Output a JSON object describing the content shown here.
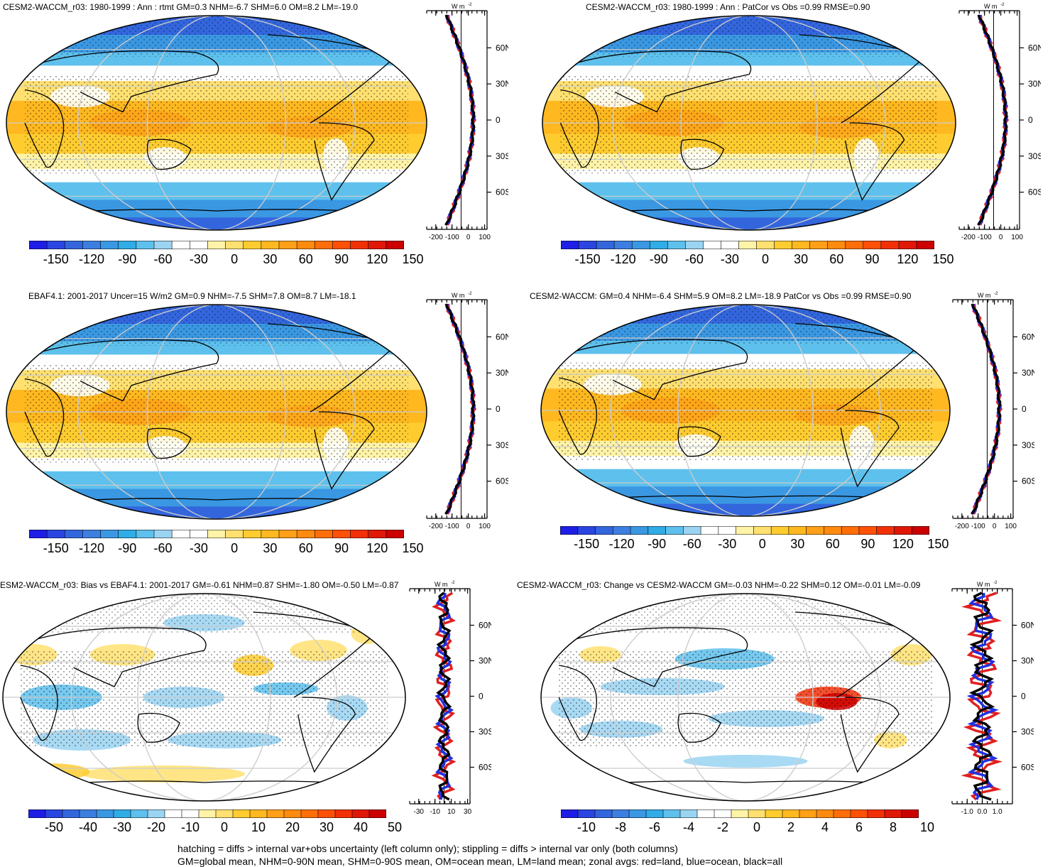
{
  "panels": [
    {
      "id": "p1",
      "title": "CESM2-WACCM_r03: 1980-1999 : Ann : rtmt GM=0.3 NHM=-6.7 SHM=6.0 OM=8.2 LM=-19.0",
      "type": "mean",
      "zonal_ticks_x": [
        "-200",
        "-100",
        "0",
        "100"
      ],
      "unit_label": "W m",
      "unit_sup": "-2",
      "cbar_ticks": [
        "-150",
        "-120",
        "-90",
        "-60",
        "-30",
        "0",
        "30",
        "60",
        "90",
        "120",
        "150"
      ]
    },
    {
      "id": "p2",
      "title": "CESM2-WACCM_r03: 1980-1999 : Ann : PatCor vs Obs =0.99 RMSE=0.90",
      "type": "mean",
      "zonal_ticks_x": [
        "-200",
        "-100",
        "0",
        "100"
      ],
      "unit_label": "W m",
      "unit_sup": "-2",
      "cbar_ticks": [
        "-150",
        "-120",
        "-90",
        "-60",
        "-30",
        "0",
        "30",
        "60",
        "90",
        "120",
        "150"
      ]
    },
    {
      "id": "p3",
      "title": "EBAF4.1: 2001-2017 Uncer=15 W/m2 GM=0.9 NHM=-7.5 SHM=7.8 OM=8.7 LM=-18.1",
      "type": "mean",
      "zonal_ticks_x": [
        "-200",
        "-100",
        "0",
        "100"
      ],
      "unit_label": "W m",
      "unit_sup": "-2",
      "cbar_ticks": [
        "-150",
        "-120",
        "-90",
        "-60",
        "-30",
        "0",
        "30",
        "60",
        "90",
        "120",
        "150"
      ]
    },
    {
      "id": "p4",
      "title": "CESM2-WACCM: GM=0.4 NHM=-6.4 SHM=5.9 OM=8.2 LM=-18.9 PatCor vs Obs =0.99 RMSE=0.90",
      "type": "mean",
      "zonal_ticks_x": [
        "-200",
        "-100",
        "0",
        "100"
      ],
      "unit_label": "W m",
      "unit_sup": "-2",
      "cbar_ticks": [
        "-150",
        "-120",
        "-90",
        "-60",
        "-30",
        "0",
        "30",
        "60",
        "90",
        "120",
        "150"
      ]
    },
    {
      "id": "p5",
      "title": "ESM2-WACCM_r03: Bias vs EBAF4.1: 2001-2017 GM=-0.61 NHM=0.87 SHM=-1.80 OM=-0.50 LM=-0.87",
      "type": "bias",
      "zonal_ticks_x": [
        "-30",
        "-10",
        "10",
        "30"
      ],
      "unit_label": "W m",
      "unit_sup": "-2",
      "cbar_ticks": [
        "-50",
        "-40",
        "-30",
        "-20",
        "-10",
        "0",
        "10",
        "20",
        "30",
        "40",
        "50"
      ]
    },
    {
      "id": "p6",
      "title": "CESM2-WACCM_r03: Change vs CESM2-WACCM GM=-0.03 NHM=-0.22 SHM=0.12 OM=-0.01 LM=-0.09",
      "type": "change",
      "zonal_ticks_x": [
        "-1.0",
        "0.0",
        "1.0"
      ],
      "unit_label": "W m",
      "unit_sup": "-2",
      "cbar_ticks": [
        "-10",
        "-8",
        "-6",
        "-4",
        "-2",
        "0",
        "2",
        "4",
        "6",
        "8",
        "10"
      ]
    }
  ],
  "lat_ticks": [
    "60N",
    "30N",
    "0",
    "30S",
    "60S"
  ],
  "footer": {
    "line1": "hatching = diffs > internal var+obs uncertainty (left column only); stippling = diffs > internal var only (both columns)",
    "line2": "GM=global mean, NHM=0-90N mean, SHM=0-90S mean, OM=ocean mean, LM=land mean; zonal avgs: red=land, blue=ocean, black=all"
  },
  "colors": {
    "palette": [
      "#1e1ee6",
      "#2a45e0",
      "#3366dd",
      "#3d7fe0",
      "#3a97e2",
      "#30ace6",
      "#5ec0ec",
      "#9ad4f2",
      "#ffffff",
      "#ffffff",
      "#fff3a8",
      "#ffe070",
      "#ffcc30",
      "#ffb820",
      "#ffa018",
      "#ff8a10",
      "#ff6e0a",
      "#ff5008",
      "#f23008",
      "#e01808",
      "#cc0000"
    ],
    "land": "#e02020",
    "ocean": "#2030e0",
    "all": "#000000"
  }
}
